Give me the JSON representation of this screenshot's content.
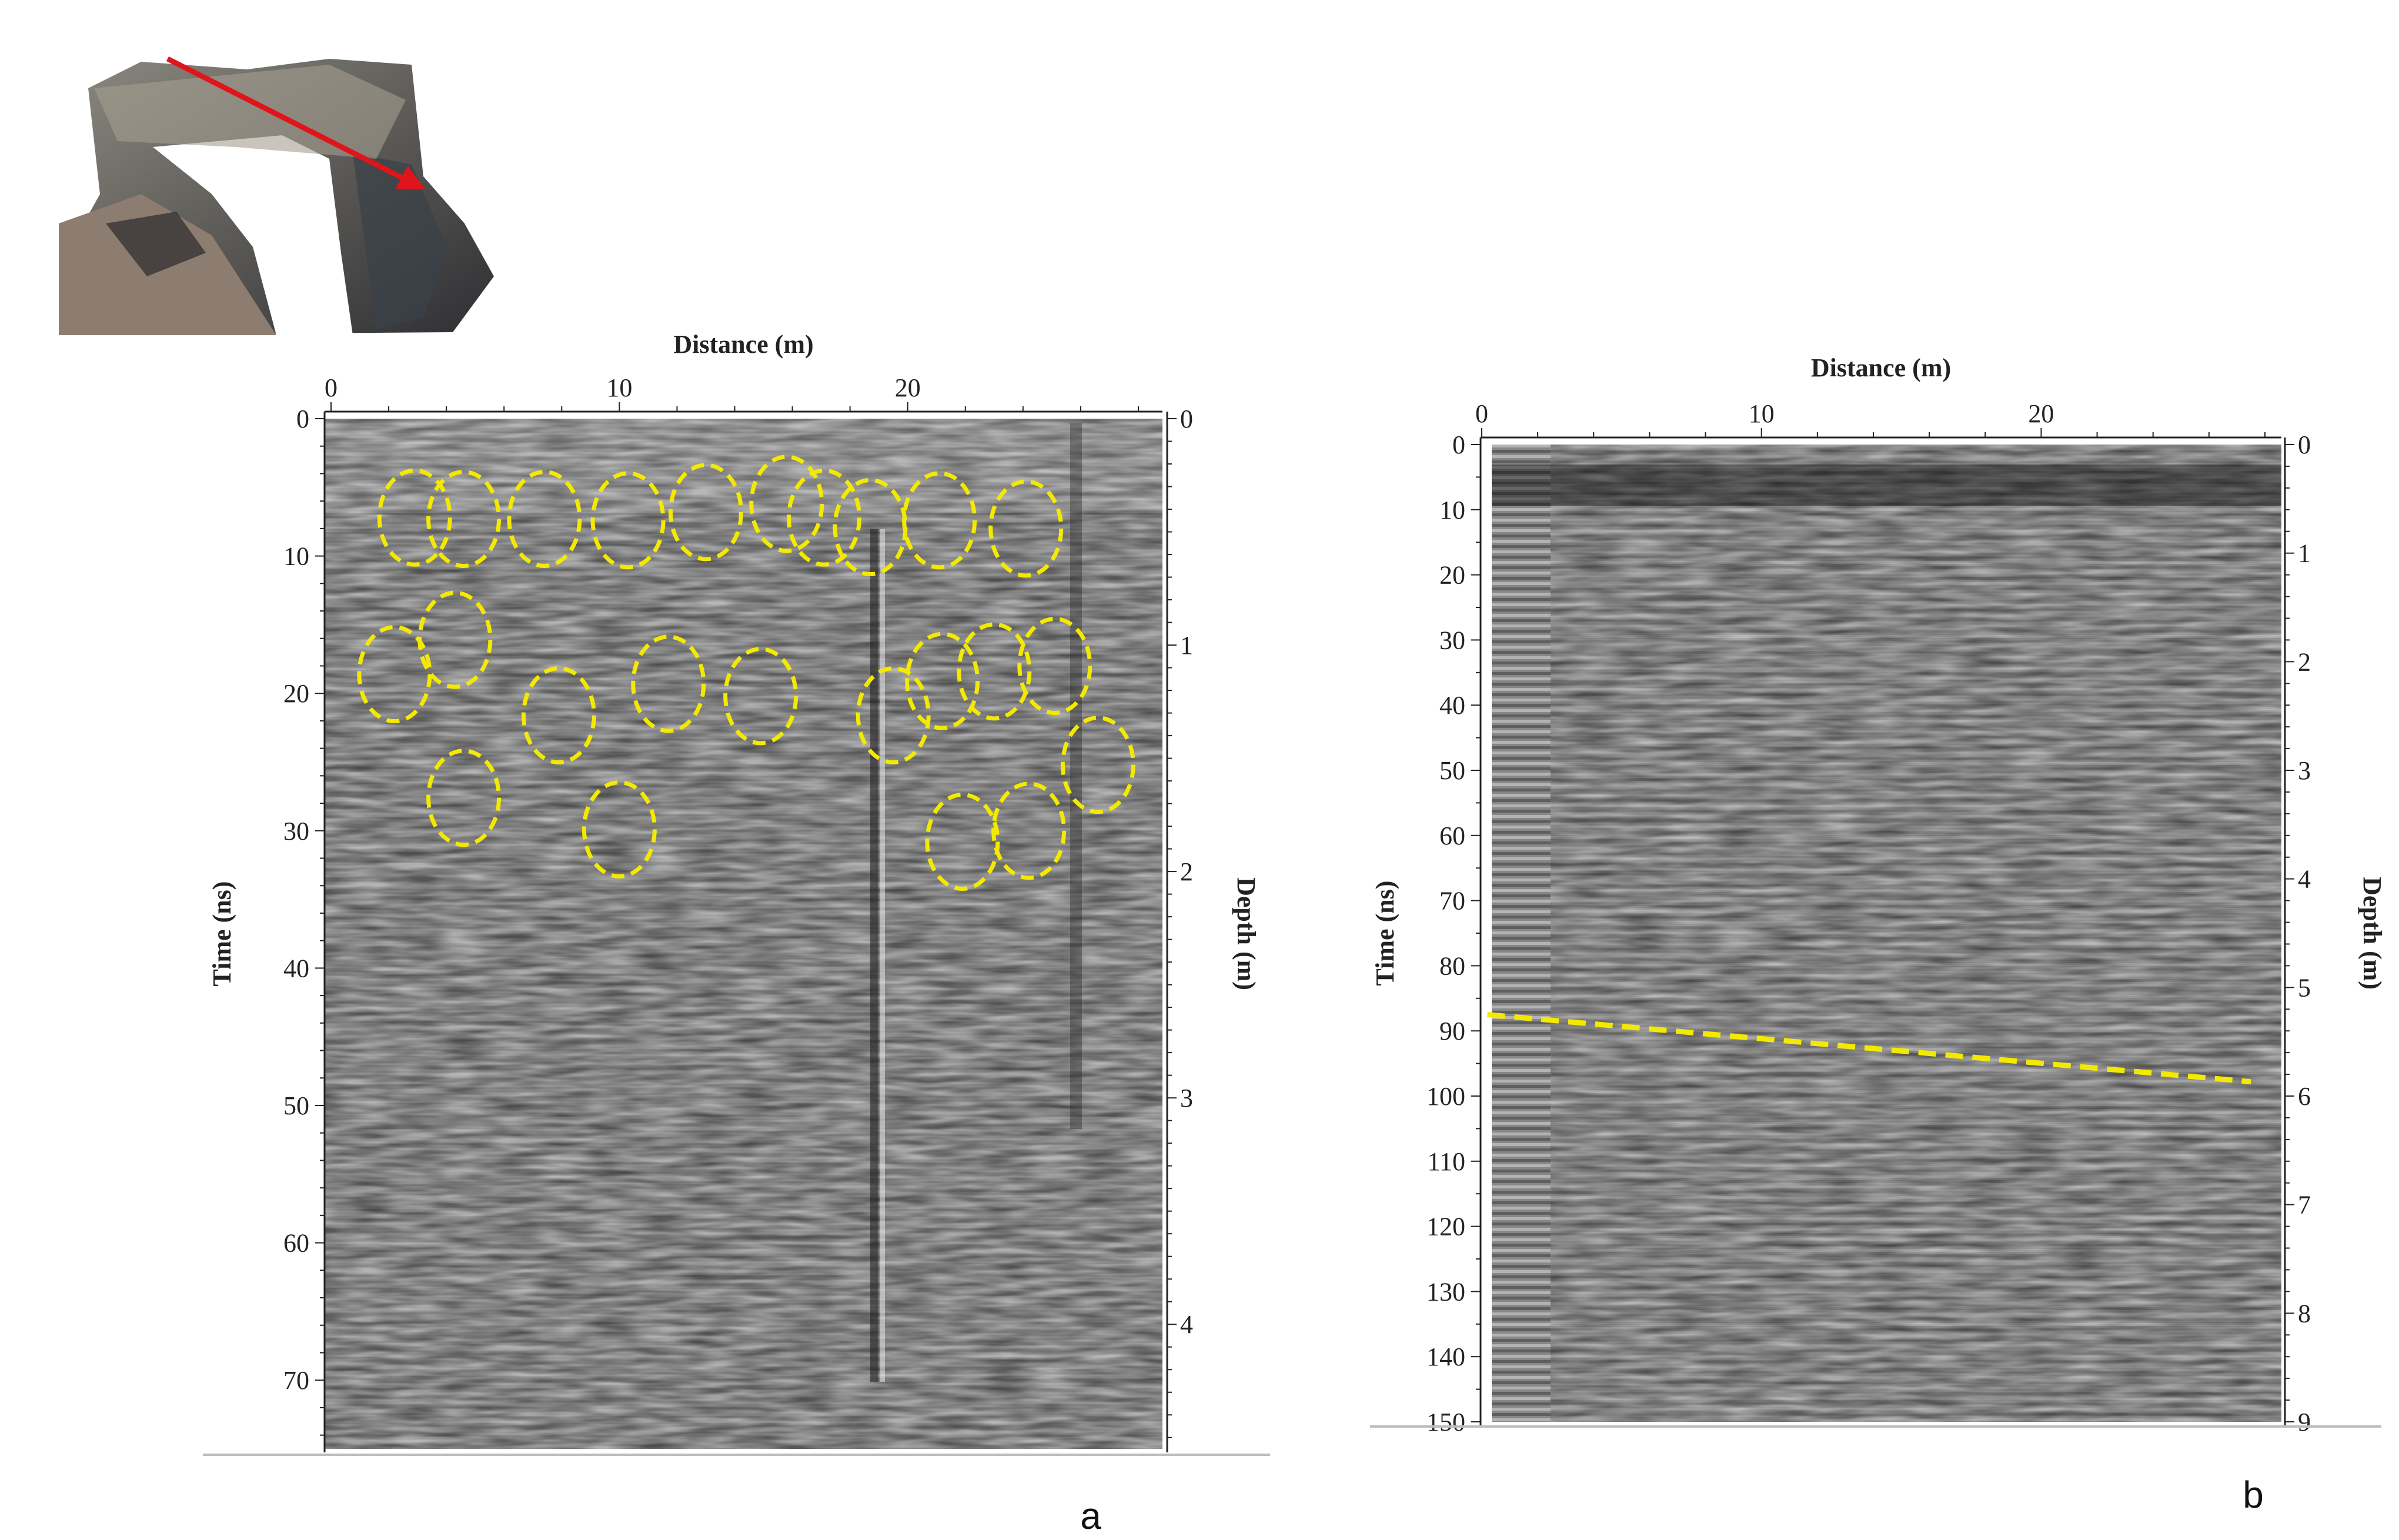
{
  "panel_letters": [
    "a",
    "b"
  ],
  "chart_data": [
    {
      "type": "heatmap",
      "panel": "a",
      "xlabel": "Distance (m)",
      "ylabel": "Time (ns)",
      "y2label": "Depth (m)",
      "xlim": [
        0,
        28
      ],
      "ylim": [
        0,
        75
      ],
      "y2lim": [
        0,
        4.55
      ],
      "x_ticks": [
        0,
        10,
        20
      ],
      "y_ticks": [
        0,
        10,
        20,
        30,
        40,
        50,
        60,
        70
      ],
      "y2_ticks": [
        0,
        1,
        2,
        3,
        4
      ],
      "colormap": "grayscale",
      "annotations": {
        "type": "dashed-ellipse",
        "color": "#f4ea00",
        "markers": [
          {
            "x": 2.9,
            "time": 7.2
          },
          {
            "x": 4.6,
            "time": 7.3
          },
          {
            "x": 7.4,
            "time": 7.3
          },
          {
            "x": 10.3,
            "time": 7.4
          },
          {
            "x": 13.0,
            "time": 6.8
          },
          {
            "x": 15.8,
            "time": 6.2
          },
          {
            "x": 17.1,
            "time": 7.2
          },
          {
            "x": 18.7,
            "time": 7.9
          },
          {
            "x": 21.1,
            "time": 7.4
          },
          {
            "x": 24.1,
            "time": 8.0
          },
          {
            "x": 2.2,
            "time": 18.6
          },
          {
            "x": 4.3,
            "time": 16.1
          },
          {
            "x": 7.9,
            "time": 21.6
          },
          {
            "x": 11.7,
            "time": 19.3
          },
          {
            "x": 14.9,
            "time": 20.2
          },
          {
            "x": 19.5,
            "time": 21.6
          },
          {
            "x": 21.2,
            "time": 19.1
          },
          {
            "x": 23.0,
            "time": 18.4
          },
          {
            "x": 25.1,
            "time": 18.0
          },
          {
            "x": 26.6,
            "time": 25.2
          },
          {
            "x": 4.6,
            "time": 27.6
          },
          {
            "x": 10.0,
            "time": 29.9
          },
          {
            "x": 21.9,
            "time": 30.8
          },
          {
            "x": 24.2,
            "time": 30.0
          }
        ]
      }
    },
    {
      "type": "heatmap",
      "panel": "b",
      "xlabel": "Distance  (m)",
      "ylabel": "Time (ns)",
      "y2label": "Depth (m)",
      "xlim": [
        0,
        28
      ],
      "ylim": [
        0,
        150
      ],
      "y2lim": [
        0,
        9
      ],
      "x_ticks": [
        0,
        10,
        20
      ],
      "y_ticks": [
        0,
        10,
        20,
        30,
        40,
        50,
        60,
        70,
        80,
        90,
        100,
        110,
        120,
        130,
        140,
        150
      ],
      "y2_ticks": [
        0,
        1,
        2,
        3,
        4,
        5,
        6,
        7,
        8,
        9
      ],
      "colormap": "grayscale",
      "annotations": {
        "type": "dashed-line",
        "color": "#f4ea00",
        "points": [
          {
            "x": 0.2,
            "time": 87.5
          },
          {
            "x": 27.5,
            "time": 97.8
          }
        ]
      }
    }
  ]
}
